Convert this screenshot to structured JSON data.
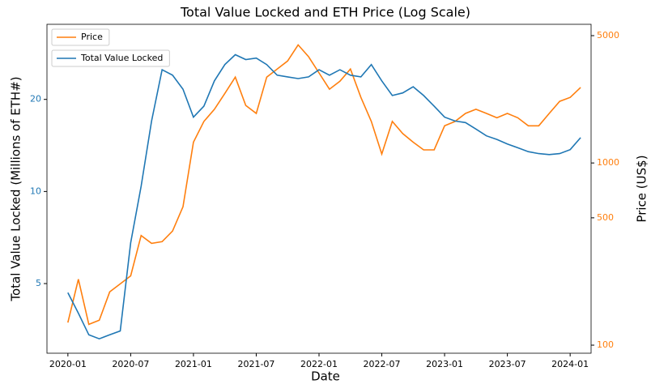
{
  "chart_data": {
    "type": "line",
    "title": "Total Value Locked and ETH Price (Log Scale)",
    "x_label": "Date",
    "y_label": "Total Value Locked (Millions of ETH#)",
    "y2_label": "Price (US$)",
    "x": [
      "2020-01",
      "2020-02",
      "2020-03",
      "2020-04",
      "2020-05",
      "2020-06",
      "2020-07",
      "2020-08",
      "2020-09",
      "2020-10",
      "2020-11",
      "2020-12",
      "2021-01",
      "2021-02",
      "2021-03",
      "2021-04",
      "2021-05",
      "2021-06",
      "2021-07",
      "2021-08",
      "2021-09",
      "2021-10",
      "2021-11",
      "2021-12",
      "2022-01",
      "2022-02",
      "2022-03",
      "2022-04",
      "2022-05",
      "2022-06",
      "2022-07",
      "2022-08",
      "2022-09",
      "2022-10",
      "2022-11",
      "2022-12",
      "2023-01",
      "2023-02",
      "2023-03",
      "2023-04",
      "2023-05",
      "2023-06",
      "2023-07",
      "2023-08",
      "2023-09",
      "2023-10",
      "2023-11",
      "2023-12",
      "2024-01",
      "2024-02"
    ],
    "series": [
      {
        "name": "Total Value Locked",
        "color": "#1f77b4",
        "axis": "y",
        "values": [
          4.67,
          4.0,
          3.4,
          3.3,
          3.4,
          3.5,
          6.8,
          10.4,
          17,
          25,
          24,
          21.6,
          17.5,
          19,
          23,
          26,
          28,
          27,
          27.3,
          26,
          24,
          23.7,
          23.4,
          23.7,
          25,
          24,
          25,
          24,
          23.7,
          26,
          23,
          20.6,
          21,
          22,
          20.6,
          19,
          17.5,
          17,
          16.8,
          16,
          15.2,
          14.8,
          14.3,
          13.9,
          13.5,
          13.3,
          13.2,
          13.3,
          13.7,
          15
        ]
      },
      {
        "name": "Price",
        "color": "#ff7f0e",
        "axis": "y2",
        "values": [
          133,
          230,
          130,
          137,
          196,
          217,
          240,
          400,
          362,
          370,
          423,
          575,
          1300,
          1690,
          1970,
          2410,
          2960,
          2070,
          1870,
          2960,
          3280,
          3630,
          4450,
          3830,
          3120,
          2540,
          2810,
          3280,
          2290,
          1690,
          1120,
          1690,
          1450,
          1300,
          1180,
          1180,
          1600,
          1690,
          1870,
          1970,
          1870,
          1770,
          1870,
          1770,
          1600,
          1600,
          1870,
          2180,
          2290,
          2600
        ]
      }
    ],
    "xlim": [
      "2019-11",
      "2024-03"
    ],
    "xticks": [
      "2020-01",
      "2020-07",
      "2021-01",
      "2021-07",
      "2022-01",
      "2022-07",
      "2023-01",
      "2023-07",
      "2024-01"
    ],
    "ylim": [
      2.96,
      35.2
    ],
    "yticks": [
      5,
      10,
      20
    ],
    "y_log": true,
    "y2lim": [
      90.3,
      5770
    ],
    "y2ticks": [
      100,
      500,
      1000,
      5000
    ],
    "y2_log": true,
    "grid": false,
    "legend_loc": "upper left"
  }
}
